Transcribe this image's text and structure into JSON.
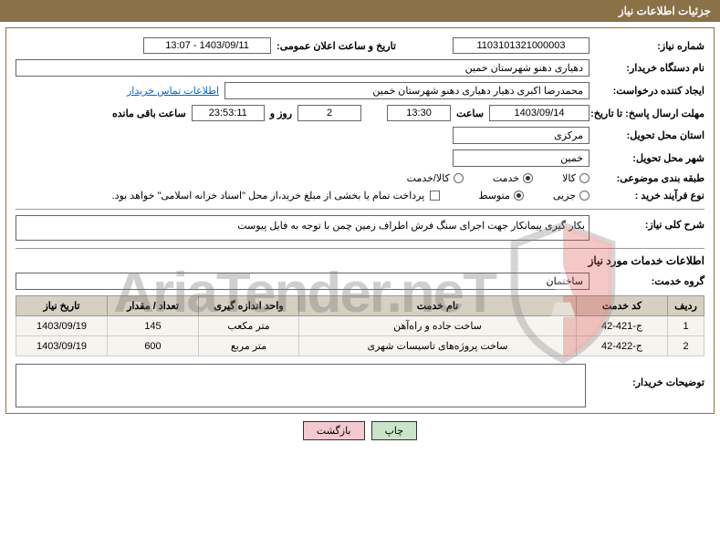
{
  "header": {
    "title": "جزئیات اطلاعات نیاز"
  },
  "form": {
    "need_number": {
      "label": "شماره نیاز:",
      "value": "1103101321000003"
    },
    "public_date": {
      "label": "تاریخ و ساعت اعلان عمومی:",
      "value": "1403/09/11 - 13:07"
    },
    "buyer_org": {
      "label": "نام دستگاه خریدار:",
      "value": "دهیاری دهنو شهرستان خمین"
    },
    "requester": {
      "label": "ایجاد کننده درخواست:",
      "value": "محمدرضا اکبری دهیار دهیاری دهنو شهرستان خمین"
    },
    "buyer_contact_link": "اطلاعات تماس خریدار",
    "deadline": {
      "label": "مهلت ارسال پاسخ: تا تاریخ:",
      "date": "1403/09/14",
      "time_label": "ساعت",
      "time": "13:30",
      "days": "2",
      "days_label": "روز و",
      "countdown": "23:53:11",
      "remaining_label": "ساعت باقی مانده"
    },
    "delivery_province": {
      "label": "استان محل تحویل:",
      "value": "مرکزی"
    },
    "delivery_city": {
      "label": "شهر محل تحویل:",
      "value": "خمین"
    },
    "category": {
      "label": "طبقه بندی موضوعی:",
      "options": [
        {
          "label": "کالا",
          "checked": false
        },
        {
          "label": "خدمت",
          "checked": true
        },
        {
          "label": "کالا/خدمت",
          "checked": false
        }
      ]
    },
    "process_type": {
      "label": "نوع فرآیند خرید :",
      "options": [
        {
          "label": "جزیی",
          "checked": false
        },
        {
          "label": "متوسط",
          "checked": true
        }
      ]
    },
    "payment_note": {
      "checkbox_checked": false,
      "text": "پرداخت تمام یا بخشی از مبلغ خرید،از محل \"اسناد خزانه اسلامی\" خواهد بود."
    },
    "general_desc": {
      "label": "شرح کلی نیاز:",
      "value": "بکار گیری پیمانکار جهت اجرای سنگ فرش اطراف زمین چمن با توجه به فایل پیوست"
    },
    "services_section_title": "اطلاعات خدمات مورد نیاز",
    "service_group": {
      "label": "گروه خدمت:",
      "value": "ساختمان"
    }
  },
  "table": {
    "headers": [
      "ردیف",
      "کد خدمت",
      "نام خدمت",
      "واحد اندازه گیری",
      "تعداد / مقدار",
      "تاریخ نیاز"
    ],
    "col_widths": [
      "40px",
      "100px",
      "auto",
      "110px",
      "100px",
      "100px"
    ],
    "rows": [
      [
        "1",
        "ج-421-42",
        "ساخت جاده و راه‌آهن",
        "متر مکعب",
        "145",
        "1403/09/19"
      ],
      [
        "2",
        "ج-422-42",
        "ساخت پروژه‌های تاسیسات شهری",
        "متر مربع",
        "600",
        "1403/09/19"
      ]
    ]
  },
  "buyer_notes_label": "توضیحات خریدار:",
  "buttons": {
    "print": "چاپ",
    "back": "بازگشت"
  },
  "watermark": {
    "text": "AriaTender.neT",
    "shield_color": "#d9534f",
    "shield_border": "#555555"
  }
}
